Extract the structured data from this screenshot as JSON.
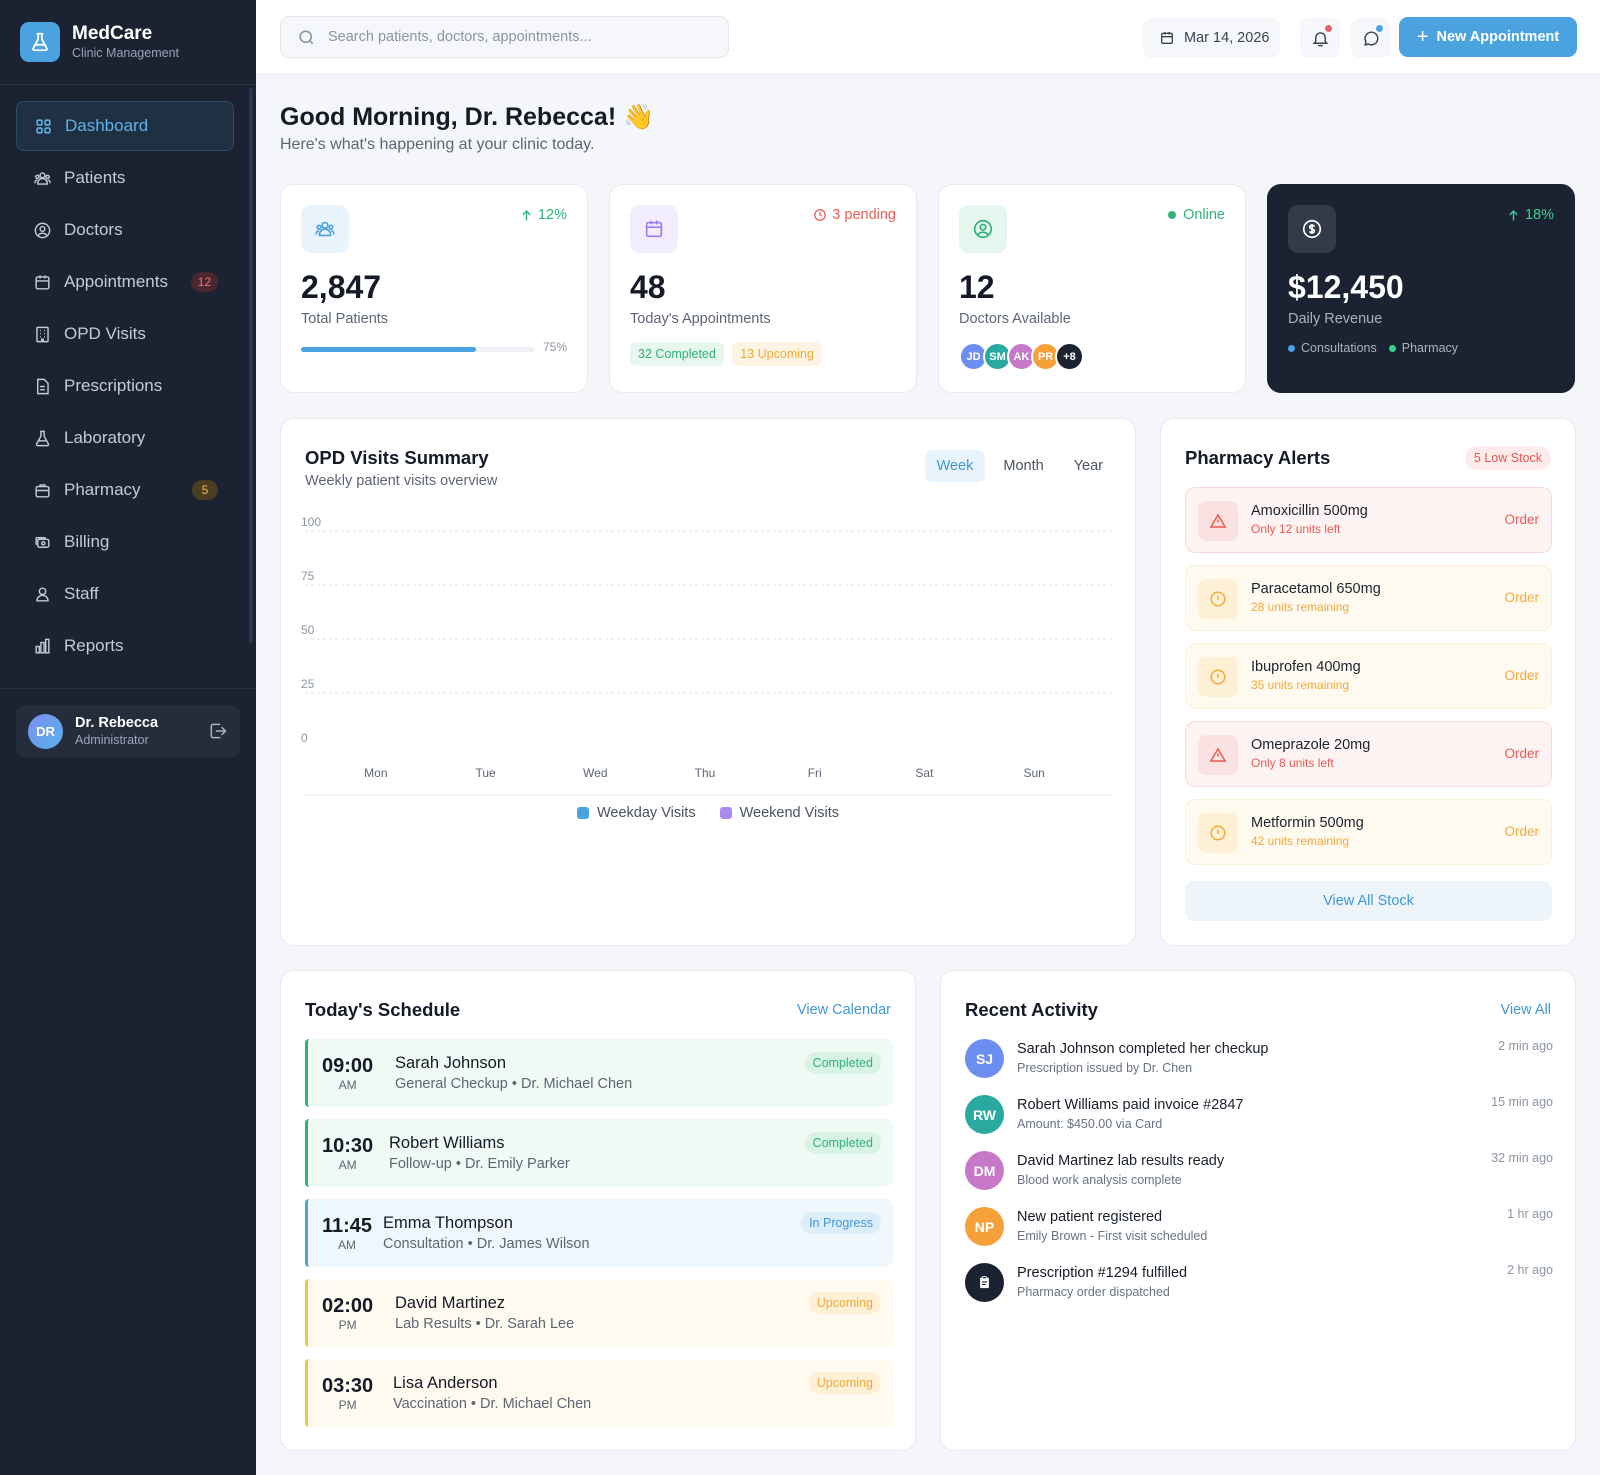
{
  "brand": {
    "name": "MedCare",
    "subtitle": "Clinic Management"
  },
  "sidebar": {
    "items": [
      {
        "label": "Dashboard",
        "icon": "grid-icon",
        "active": true
      },
      {
        "label": "Patients",
        "icon": "users-icon"
      },
      {
        "label": "Doctors",
        "icon": "user-circle-icon"
      },
      {
        "label": "Appointments",
        "icon": "calendar-icon",
        "badge": "12"
      },
      {
        "label": "OPD Visits",
        "icon": "building-icon"
      },
      {
        "label": "Prescriptions",
        "icon": "file-icon"
      },
      {
        "label": "Laboratory",
        "icon": "flask-icon"
      },
      {
        "label": "Pharmacy",
        "icon": "briefcase-icon",
        "badge": "5"
      },
      {
        "label": "Billing",
        "icon": "cash-icon"
      },
      {
        "label": "Staff",
        "icon": "user-group-icon"
      },
      {
        "label": "Reports",
        "icon": "bar-chart-icon"
      }
    ],
    "user": {
      "initials": "DR",
      "name": "Dr. Rebecca",
      "role": "Administrator"
    }
  },
  "topbar": {
    "search_placeholder": "Search patients, doctors, appointments...",
    "date": "Mar 14, 2026",
    "new_appointment": "New Appointment"
  },
  "greeting": {
    "title": "Good Morning, Dr. Rebecca! 👋",
    "subtitle": "Here's what's happening at your clinic today."
  },
  "stats": {
    "patients": {
      "trend": "12%",
      "value": "2,847",
      "label": "Total Patients",
      "progress": 75,
      "progress_label": "75%"
    },
    "appointments": {
      "trend": "3 pending",
      "value": "48",
      "label": "Today's Appointments",
      "completed": "32 Completed",
      "upcoming": "13 Upcoming"
    },
    "doctors": {
      "trend": "Online",
      "value": "12",
      "label": "Doctors Available",
      "avatars": [
        "JD",
        "SM",
        "AK",
        "PR",
        "+8"
      ]
    },
    "revenue": {
      "trend": "18%",
      "value": "$12,450",
      "label": "Daily Revenue",
      "legend": [
        "Consultations",
        "Pharmacy"
      ]
    }
  },
  "opd": {
    "title": "OPD Visits Summary",
    "subtitle": "Weekly patient visits overview",
    "tabs": [
      "Week",
      "Month",
      "Year"
    ],
    "active_tab": "Week"
  },
  "chart_data": {
    "type": "bar",
    "title": "OPD Visits Summary",
    "categories": [
      "Mon",
      "Tue",
      "Wed",
      "Thu",
      "Fri",
      "Sat",
      "Sun"
    ],
    "ylim": [
      0,
      100
    ],
    "yticks": [
      "100",
      "75",
      "50",
      "25",
      "0"
    ],
    "grid": true,
    "legend_position": "bottom",
    "series": [
      {
        "name": "Weekday Visits",
        "values": [
          0,
          0,
          0,
          0,
          0,
          0,
          0
        ],
        "color": "#4aa3df"
      },
      {
        "name": "Weekend Visits",
        "values": [
          0,
          0,
          0,
          0,
          0,
          0,
          0
        ],
        "color": "#a78bf0"
      }
    ]
  },
  "pharmacy": {
    "title": "Pharmacy Alerts",
    "badge": "5 Low Stock",
    "alerts": [
      {
        "name": "Amoxicillin 500mg",
        "note": "Only 12 units left",
        "level": "red",
        "action": "Order"
      },
      {
        "name": "Paracetamol 650mg",
        "note": "28 units remaining",
        "level": "amber",
        "action": "Order"
      },
      {
        "name": "Ibuprofen 400mg",
        "note": "35 units remaining",
        "level": "amber",
        "action": "Order"
      },
      {
        "name": "Omeprazole 20mg",
        "note": "Only 8 units left",
        "level": "red",
        "action": "Order"
      },
      {
        "name": "Metformin 500mg",
        "note": "42 units remaining",
        "level": "amber",
        "action": "Order"
      }
    ],
    "view_all": "View All Stock"
  },
  "schedule": {
    "title": "Today's Schedule",
    "link": "View Calendar",
    "items": [
      {
        "time": "09:00",
        "period": "AM",
        "name": "Sarah Johnson",
        "desc": "General Checkup • Dr. Michael Chen",
        "status": "Completed",
        "kind": "done"
      },
      {
        "time": "10:30",
        "period": "AM",
        "name": "Robert Williams",
        "desc": "Follow-up • Dr. Emily Parker",
        "status": "Completed",
        "kind": "done"
      },
      {
        "time": "11:45",
        "period": "AM",
        "name": "Emma Thompson",
        "desc": "Consultation • Dr. James Wilson",
        "status": "In Progress",
        "kind": "prog"
      },
      {
        "time": "02:00",
        "period": "PM",
        "name": "David Martinez",
        "desc": "Lab Results • Dr. Sarah Lee",
        "status": "Upcoming",
        "kind": "up"
      },
      {
        "time": "03:30",
        "period": "PM",
        "name": "Lisa Anderson",
        "desc": "Vaccination • Dr. Michael Chen",
        "status": "Upcoming",
        "kind": "up"
      }
    ]
  },
  "activity": {
    "title": "Recent Activity",
    "link": "View All",
    "items": [
      {
        "initials": "SJ",
        "who": "Sarah Johnson",
        "what": " completed her checkup",
        "sub": "Prescription issued by Dr. Chen",
        "time": "2 min ago",
        "color": "#6c8ef0"
      },
      {
        "initials": "RW",
        "who": "Robert Williams",
        "what": " paid invoice #2847",
        "sub": "Amount: $450.00 via Card",
        "time": "15 min ago",
        "color": "#2aa9a0"
      },
      {
        "initials": "DM",
        "who": "David Martinez",
        "what": " lab results ready",
        "sub": "Blood work analysis complete",
        "time": "32 min ago",
        "color": "#c878c9"
      },
      {
        "initials": "NP",
        "who": "New patient",
        "what": " registered",
        "sub": "Emily Brown - First visit scheduled",
        "time": "1 hr ago",
        "color": "#f6a03a"
      },
      {
        "initials": "",
        "who": "Prescription #1294",
        "what": " fulfilled",
        "sub": "Pharmacy order dispatched",
        "time": "2 hr ago",
        "color": "#1b2231"
      }
    ]
  },
  "colors": {
    "accent": "#4aa3df",
    "sidebar": "#1b2231",
    "success": "#2eb277",
    "warning": "#f2a83b",
    "danger": "#ea5a52"
  }
}
